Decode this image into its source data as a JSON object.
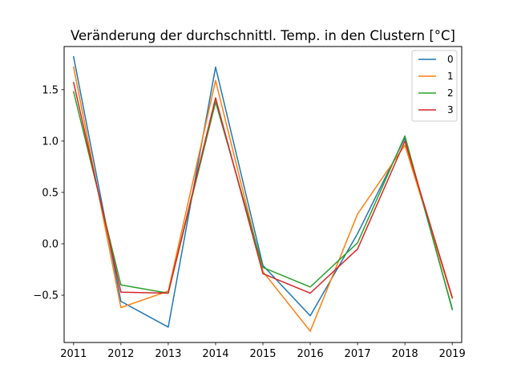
{
  "chart_data": {
    "type": "line",
    "title": "Veränderung der durchschnittl. Temp. in den Clustern [°C]",
    "xlabel": "",
    "ylabel": "",
    "x": [
      2011,
      2012,
      2013,
      2014,
      2015,
      2016,
      2017,
      2018,
      2019
    ],
    "xlim": [
      2010.8,
      2019.2
    ],
    "ylim": [
      -0.96,
      1.92
    ],
    "yticks": [
      -0.5,
      0.0,
      0.5,
      1.0,
      1.5
    ],
    "ytick_labels": [
      "−0.5",
      "0.0",
      "0.5",
      "1.0",
      "1.5"
    ],
    "grid": false,
    "legend_position": "top-right",
    "series": [
      {
        "name": "0",
        "color": "#1f77b4",
        "values": [
          1.82,
          -0.56,
          -0.81,
          1.72,
          -0.21,
          -0.7,
          0.1,
          1.03,
          -0.63
        ]
      },
      {
        "name": "1",
        "color": "#ff7f0e",
        "values": [
          1.72,
          -0.62,
          -0.46,
          1.59,
          -0.27,
          -0.85,
          0.29,
          0.96,
          -0.53
        ]
      },
      {
        "name": "2",
        "color": "#2ca02c",
        "values": [
          1.48,
          -0.4,
          -0.48,
          1.38,
          -0.23,
          -0.42,
          0.01,
          1.05,
          -0.64
        ]
      },
      {
        "name": "3",
        "color": "#d62728",
        "values": [
          1.57,
          -0.47,
          -0.48,
          1.42,
          -0.29,
          -0.48,
          -0.05,
          1.0,
          -0.52
        ]
      }
    ]
  }
}
